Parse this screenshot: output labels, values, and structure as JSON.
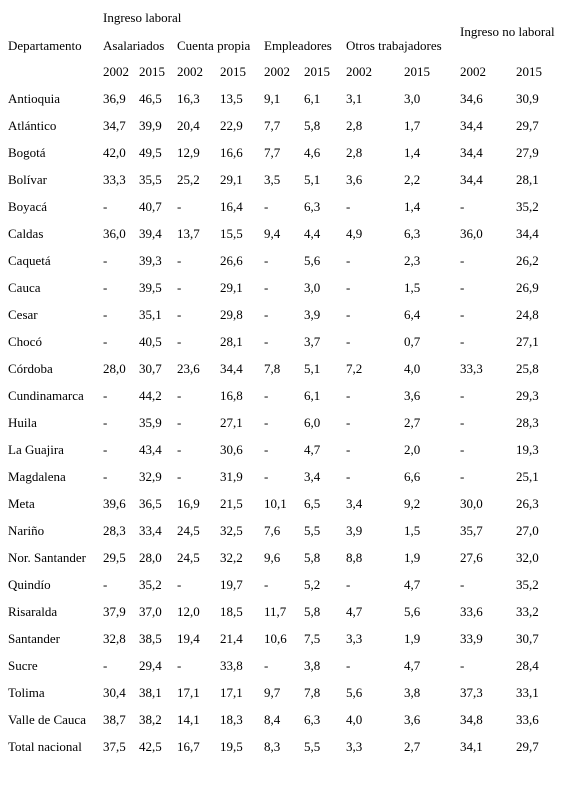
{
  "table": {
    "header": {
      "department": "Departamento",
      "labor_group": "Ingreso laboral",
      "non_labor": "Ingreso no laboral",
      "columns": [
        "Asalariados",
        "Cuenta propia",
        "Empleadores",
        "Otros trabajadores"
      ],
      "years": [
        "2002",
        "2015",
        "2002",
        "2015",
        "2002",
        "2015",
        "2002",
        "2015",
        "2002",
        "2015"
      ]
    },
    "rows": [
      [
        "Antioquia",
        "36,9",
        "46,5",
        "16,3",
        "13,5",
        "9,1",
        "6,1",
        "3,1",
        "3,0",
        "34,6",
        "30,9"
      ],
      [
        "Atlántico",
        "34,7",
        "39,9",
        "20,4",
        "22,9",
        "7,7",
        "5,8",
        "2,8",
        "1,7",
        "34,4",
        "29,7"
      ],
      [
        "Bogotá",
        "42,0",
        "49,5",
        "12,9",
        "16,6",
        "7,7",
        "4,6",
        "2,8",
        "1,4",
        "34,4",
        "27,9"
      ],
      [
        "Bolívar",
        "33,3",
        "35,5",
        "25,2",
        "29,1",
        "3,5",
        "5,1",
        "3,6",
        "2,2",
        "34,4",
        "28,1"
      ],
      [
        "Boyacá",
        "-",
        "40,7",
        "-",
        "16,4",
        "-",
        "6,3",
        "-",
        "1,4",
        "-",
        "35,2"
      ],
      [
        "Caldas",
        "36,0",
        "39,4",
        "13,7",
        "15,5",
        "9,4",
        "4,4",
        "4,9",
        "6,3",
        "36,0",
        "34,4"
      ],
      [
        "Caquetá",
        "-",
        "39,3",
        "-",
        "26,6",
        "-",
        "5,6",
        "-",
        "2,3",
        "-",
        "26,2"
      ],
      [
        "Cauca",
        "-",
        "39,5",
        "-",
        "29,1",
        "-",
        "3,0",
        "-",
        "1,5",
        "-",
        "26,9"
      ],
      [
        "Cesar",
        "-",
        "35,1",
        "-",
        "29,8",
        "-",
        "3,9",
        "-",
        "6,4",
        "-",
        "24,8"
      ],
      [
        "Chocó",
        "-",
        "40,5",
        "-",
        "28,1",
        "-",
        "3,7",
        "-",
        "0,7",
        "-",
        "27,1"
      ],
      [
        "Córdoba",
        "28,0",
        "30,7",
        "23,6",
        "34,4",
        "7,8",
        "5,1",
        "7,2",
        "4,0",
        "33,3",
        "25,8"
      ],
      [
        "Cundinamarca",
        "-",
        "44,2",
        "-",
        "16,8",
        "-",
        "6,1",
        "-",
        "3,6",
        "-",
        "29,3"
      ],
      [
        "Huila",
        "-",
        "35,9",
        "-",
        "27,1",
        "-",
        "6,0",
        "-",
        "2,7",
        "-",
        "28,3"
      ],
      [
        "La Guajira",
        "-",
        "43,4",
        "-",
        "30,6",
        "-",
        "4,7",
        "-",
        "2,0",
        "-",
        "19,3"
      ],
      [
        "Magdalena",
        "-",
        "32,9",
        "-",
        "31,9",
        "-",
        "3,4",
        "-",
        "6,6",
        "-",
        "25,1"
      ],
      [
        "Meta",
        "39,6",
        "36,5",
        "16,9",
        "21,5",
        "10,1",
        "6,5",
        "3,4",
        "9,2",
        "30,0",
        "26,3"
      ],
      [
        "Nariño",
        "28,3",
        "33,4",
        "24,5",
        "32,5",
        "7,6",
        "5,5",
        "3,9",
        "1,5",
        "35,7",
        "27,0"
      ],
      [
        "Nor. Santander",
        "29,5",
        "28,0",
        "24,5",
        "32,2",
        "9,6",
        "5,8",
        "8,8",
        "1,9",
        "27,6",
        "32,0"
      ],
      [
        "Quindío",
        "-",
        "35,2",
        "-",
        "19,7",
        "-",
        "5,2",
        "-",
        "4,7",
        "-",
        "35,2"
      ],
      [
        "Risaralda",
        "37,9",
        "37,0",
        "12,0",
        "18,5",
        "11,7",
        "5,8",
        "4,7",
        "5,6",
        "33,6",
        "33,2"
      ],
      [
        "Santander",
        "32,8",
        "38,5",
        "19,4",
        "21,4",
        "10,6",
        "7,5",
        "3,3",
        "1,9",
        "33,9",
        "30,7"
      ],
      [
        "Sucre",
        "-",
        "29,4",
        "-",
        "33,8",
        "-",
        "3,8",
        "-",
        "4,7",
        "-",
        "28,4"
      ],
      [
        "Tolima",
        "30,4",
        "38,1",
        "17,1",
        "17,1",
        "9,7",
        "7,8",
        "5,6",
        "3,8",
        "37,3",
        "33,1"
      ],
      [
        "Valle de Cauca",
        "38,7",
        "38,2",
        "14,1",
        "18,3",
        "8,4",
        "6,3",
        "4,0",
        "3,6",
        "34,8",
        "33,6"
      ],
      [
        "Total nacional",
        "37,5",
        "42,5",
        "16,7",
        "19,5",
        "8,3",
        "5,5",
        "3,3",
        "2,7",
        "34,1",
        "29,7"
      ]
    ]
  }
}
